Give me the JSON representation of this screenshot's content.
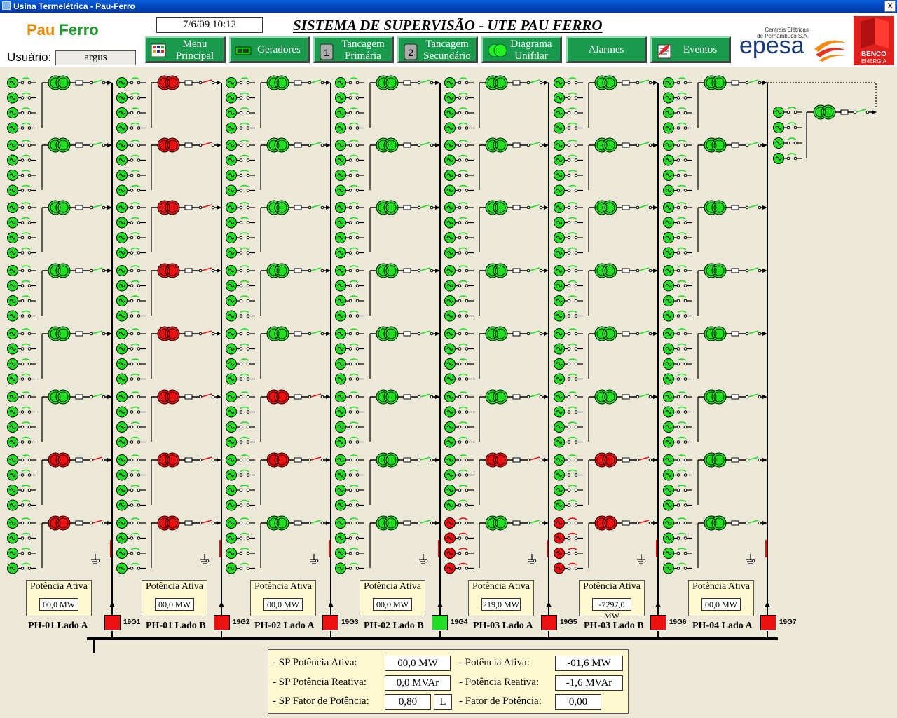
{
  "window": {
    "title": "Usina Termelétrica - Pau-Ferro",
    "close_glyph": "X"
  },
  "header": {
    "brand_part1": "Pau",
    "brand_part2": "Ferro",
    "user_label": "Usuário:",
    "user_value": "argus",
    "datetime": "7/6/09 10:12",
    "system_title": "SISTEMA DE SUPERVISÃO - UTE PAU FERRO",
    "epesa_small_line1": "Centrais Elétricas",
    "epesa_small_line2": "de Pernambuco S.A.",
    "epesa_word": "epesa",
    "benco_line1": "BENCO",
    "benco_line2": "ENERGIA"
  },
  "nav": [
    {
      "id": "menu",
      "line1": "Menu",
      "line2": "Principal",
      "icon": "menu-icon"
    },
    {
      "id": "geradores",
      "line1": "Geradores",
      "line2": "",
      "icon": "generator-icon"
    },
    {
      "id": "tancagem1",
      "line1": "Tancagem",
      "line2": "Primária",
      "icon": "tank-1-icon"
    },
    {
      "id": "tancagem2",
      "line1": "Tancagem",
      "line2": "Secundário",
      "icon": "tank-2-icon"
    },
    {
      "id": "diagrama",
      "line1": "Diagrama",
      "line2": "Unifilar",
      "icon": "transformer-icon"
    },
    {
      "id": "alarmes",
      "line1": "Alarmes",
      "line2": "",
      "icon": ""
    },
    {
      "id": "eventos",
      "line1": "Eventos",
      "line2": "",
      "icon": "events-icon"
    }
  ],
  "colors": {
    "on": "#22dd22",
    "off": "#ee1111",
    "nav_bg": "#1a9a4c",
    "panel_bg": "#fff8d0"
  },
  "sections": [
    {
      "power_title": "Potência Ativa",
      "power_value": "00,0 MW",
      "label": "PH-01 Lado A",
      "breaker": "19G1",
      "breaker_state": "off"
    },
    {
      "power_title": "Potência Ativa",
      "power_value": "00,0 MW",
      "label": "PH-01 Lado B",
      "breaker": "19G2",
      "breaker_state": "off"
    },
    {
      "power_title": "Potência Ativa",
      "power_value": "00,0 MW",
      "label": "PH-02 Lado A",
      "breaker": "19G3",
      "breaker_state": "off"
    },
    {
      "power_title": "Potência Ativa",
      "power_value": "00,0 MW",
      "label": "PH-02 Lado B",
      "breaker": "19G4",
      "breaker_state": "on"
    },
    {
      "power_title": "Potência Ativa",
      "power_value": "219,0 MW",
      "label": "PH-03 Lado A",
      "breaker": "19G5",
      "breaker_state": "off"
    },
    {
      "power_title": "Potência Ativa",
      "power_value": "-7297,0 MW",
      "label": "PH-03 Lado B",
      "breaker": "19G6",
      "breaker_state": "off"
    },
    {
      "power_title": "Potência Ativa",
      "power_value": "00,0 MW",
      "label": "PH-04 Lado A",
      "breaker": "19G7",
      "breaker_state": "off"
    }
  ],
  "diagram": {
    "columns": [
      {
        "trafos": [
          "on",
          "on",
          "on",
          "on",
          "on",
          "on",
          "off",
          "off"
        ],
        "gens": [
          "on",
          "on",
          "on",
          "on",
          "on",
          "on",
          "on",
          "on"
        ]
      },
      {
        "trafos": [
          "off",
          "off",
          "off",
          "off",
          "off",
          "off",
          "off",
          "off"
        ],
        "gens": [
          "on",
          "on",
          "on",
          "on",
          "on",
          "on",
          "on",
          "on"
        ]
      },
      {
        "trafos": [
          "on",
          "on",
          "on",
          "on",
          "on",
          "off",
          "off",
          "on"
        ],
        "gens": [
          "on",
          "on",
          "on",
          "on",
          "on",
          "on",
          "on",
          "on"
        ]
      },
      {
        "trafos": [
          "on",
          "on",
          "on",
          "on",
          "on",
          "on",
          "on",
          "on"
        ],
        "gens": [
          "on",
          "on",
          "on",
          "on",
          "on",
          "on",
          "on",
          "on"
        ]
      },
      {
        "trafos": [
          "on",
          "on",
          "on",
          "on",
          "on",
          "on",
          "off",
          "on"
        ],
        "gens": [
          "on",
          "on",
          "on",
          "on",
          "on",
          "on",
          "on",
          "off"
        ]
      },
      {
        "trafos": [
          "on",
          "on",
          "on",
          "on",
          "on",
          "on",
          "off",
          "off"
        ],
        "gens": [
          "on",
          "on",
          "on",
          "on",
          "on",
          "on",
          "on",
          "off"
        ]
      },
      {
        "trafos": [
          "on",
          "on",
          "on",
          "on",
          "on",
          "on",
          "on",
          "on"
        ],
        "gens": [
          "on",
          "on",
          "on",
          "on",
          "on",
          "on",
          "on",
          "on"
        ]
      }
    ],
    "extra_group": {
      "trafo": "on"
    }
  },
  "summary": {
    "sp_potencia_ativa_label": "- SP Potência Ativa:",
    "sp_potencia_ativa": "00,0 MW",
    "sp_potencia_reativa_label": "- SP Potência Reativa:",
    "sp_potencia_reativa": "0,0 MVAr",
    "sp_fator_label": "- SP Fator de Potência:",
    "sp_fator": "0,80",
    "sp_fator_mode": "L",
    "potencia_ativa_label": "- Potência Ativa:",
    "potencia_ativa": "-01,6 MW",
    "potencia_reativa_label": "- Potência Reativa:",
    "potencia_reativa": "-1,6 MVAr",
    "fator_label": "- Fator de Potência:",
    "fator": "0,00"
  }
}
